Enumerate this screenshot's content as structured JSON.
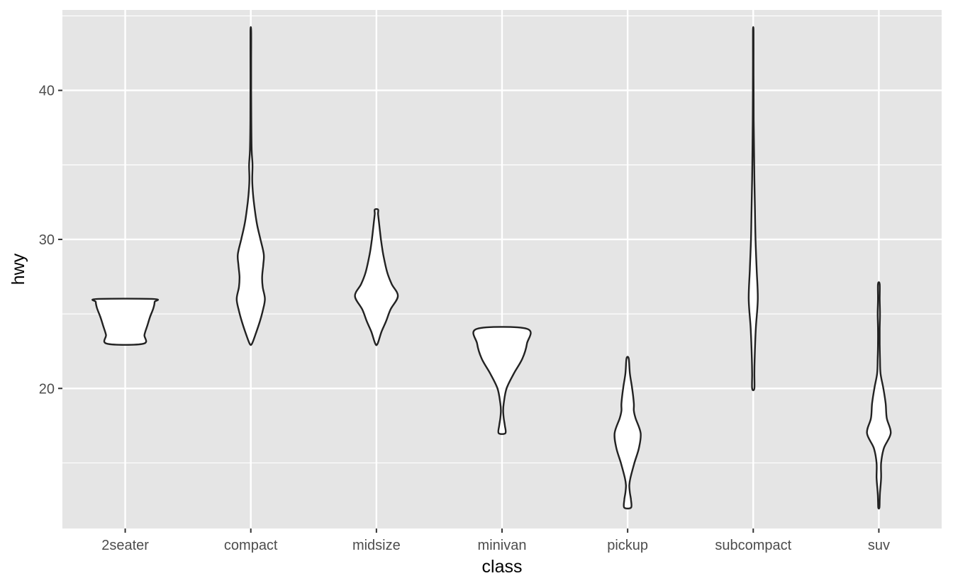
{
  "chart_data": {
    "type": "violin",
    "title": "",
    "xlabel": "class",
    "ylabel": "hwy",
    "categories": [
      "2seater",
      "compact",
      "midsize",
      "minivan",
      "pickup",
      "subcompact",
      "suv"
    ],
    "ylim": [
      10.6,
      45.4
    ],
    "y_ticks": [
      20,
      30,
      40
    ],
    "y_tick_labels": [
      "20",
      "30",
      "40"
    ],
    "grid": true,
    "panel_color": "#e5e5e5",
    "grid_color": "#ffffff",
    "violin_fill": "#ffffff",
    "violin_stroke": "#222222",
    "violins": [
      {
        "name": "2seater",
        "profile": [
          [
            23,
            0.32
          ],
          [
            23.6,
            0.34
          ],
          [
            24.2,
            0.39
          ],
          [
            24.8,
            0.44
          ],
          [
            25.4,
            0.5
          ],
          [
            25.8,
            0.52
          ],
          [
            26,
            0.5
          ]
        ]
      },
      {
        "name": "compact",
        "profile": [
          [
            23,
            0.02
          ],
          [
            23.7,
            0.09
          ],
          [
            24.5,
            0.16
          ],
          [
            25.2,
            0.21
          ],
          [
            26,
            0.25
          ],
          [
            26.8,
            0.21
          ],
          [
            27.5,
            0.2
          ],
          [
            28.3,
            0.22
          ],
          [
            29,
            0.23
          ],
          [
            30,
            0.17
          ],
          [
            31,
            0.11
          ],
          [
            32,
            0.07
          ],
          [
            33,
            0.04
          ],
          [
            34,
            0.025
          ],
          [
            35,
            0.03
          ],
          [
            36,
            0.015
          ],
          [
            38,
            0.008
          ],
          [
            40,
            0.006
          ],
          [
            42,
            0.006
          ],
          [
            44,
            0.006
          ]
        ]
      },
      {
        "name": "midsize",
        "profile": [
          [
            23,
            0.02
          ],
          [
            23.8,
            0.09
          ],
          [
            24.5,
            0.17
          ],
          [
            25.3,
            0.25
          ],
          [
            26.2,
            0.38
          ],
          [
            27,
            0.27
          ],
          [
            27.8,
            0.19
          ],
          [
            29,
            0.12
          ],
          [
            30,
            0.08
          ],
          [
            31,
            0.05
          ],
          [
            31.7,
            0.03
          ],
          [
            32,
            0.03
          ]
        ]
      },
      {
        "name": "minivan",
        "profile": [
          [
            17,
            0.06
          ],
          [
            17.5,
            0.05
          ],
          [
            18,
            0.03
          ],
          [
            18.5,
            0.02
          ],
          [
            19,
            0.03
          ],
          [
            20,
            0.08
          ],
          [
            21,
            0.21
          ],
          [
            22,
            0.36
          ],
          [
            23,
            0.44
          ],
          [
            24,
            0.44
          ]
        ]
      },
      {
        "name": "pickup",
        "profile": [
          [
            12,
            0.06
          ],
          [
            12.5,
            0.06
          ],
          [
            13,
            0.04
          ],
          [
            13.5,
            0.03
          ],
          [
            14,
            0.05
          ],
          [
            15,
            0.12
          ],
          [
            16,
            0.2
          ],
          [
            17,
            0.23
          ],
          [
            18,
            0.14
          ],
          [
            18.5,
            0.11
          ],
          [
            19,
            0.11
          ],
          [
            20,
            0.08
          ],
          [
            21,
            0.04
          ],
          [
            22,
            0.02
          ]
        ]
      },
      {
        "name": "subcompact",
        "profile": [
          [
            20,
            0.02
          ],
          [
            21,
            0.02
          ],
          [
            22,
            0.025
          ],
          [
            24,
            0.045
          ],
          [
            26,
            0.08
          ],
          [
            28,
            0.06
          ],
          [
            30,
            0.04
          ],
          [
            32,
            0.03
          ],
          [
            34,
            0.02
          ],
          [
            36,
            0.014
          ],
          [
            38,
            0.008
          ],
          [
            40,
            0.006
          ],
          [
            42,
            0.005
          ],
          [
            44,
            0.005
          ]
        ]
      },
      {
        "name": "suv",
        "profile": [
          [
            12,
            0.01
          ],
          [
            12.5,
            0.015
          ],
          [
            13,
            0.02
          ],
          [
            14,
            0.04
          ],
          [
            15,
            0.04
          ],
          [
            16,
            0.09
          ],
          [
            17,
            0.21
          ],
          [
            18,
            0.14
          ],
          [
            19,
            0.12
          ],
          [
            20,
            0.08
          ],
          [
            21,
            0.03
          ],
          [
            22,
            0.02
          ],
          [
            23,
            0.015
          ],
          [
            24,
            0.015
          ],
          [
            25,
            0.02
          ],
          [
            26,
            0.015
          ],
          [
            27,
            0.015
          ]
        ]
      }
    ]
  }
}
